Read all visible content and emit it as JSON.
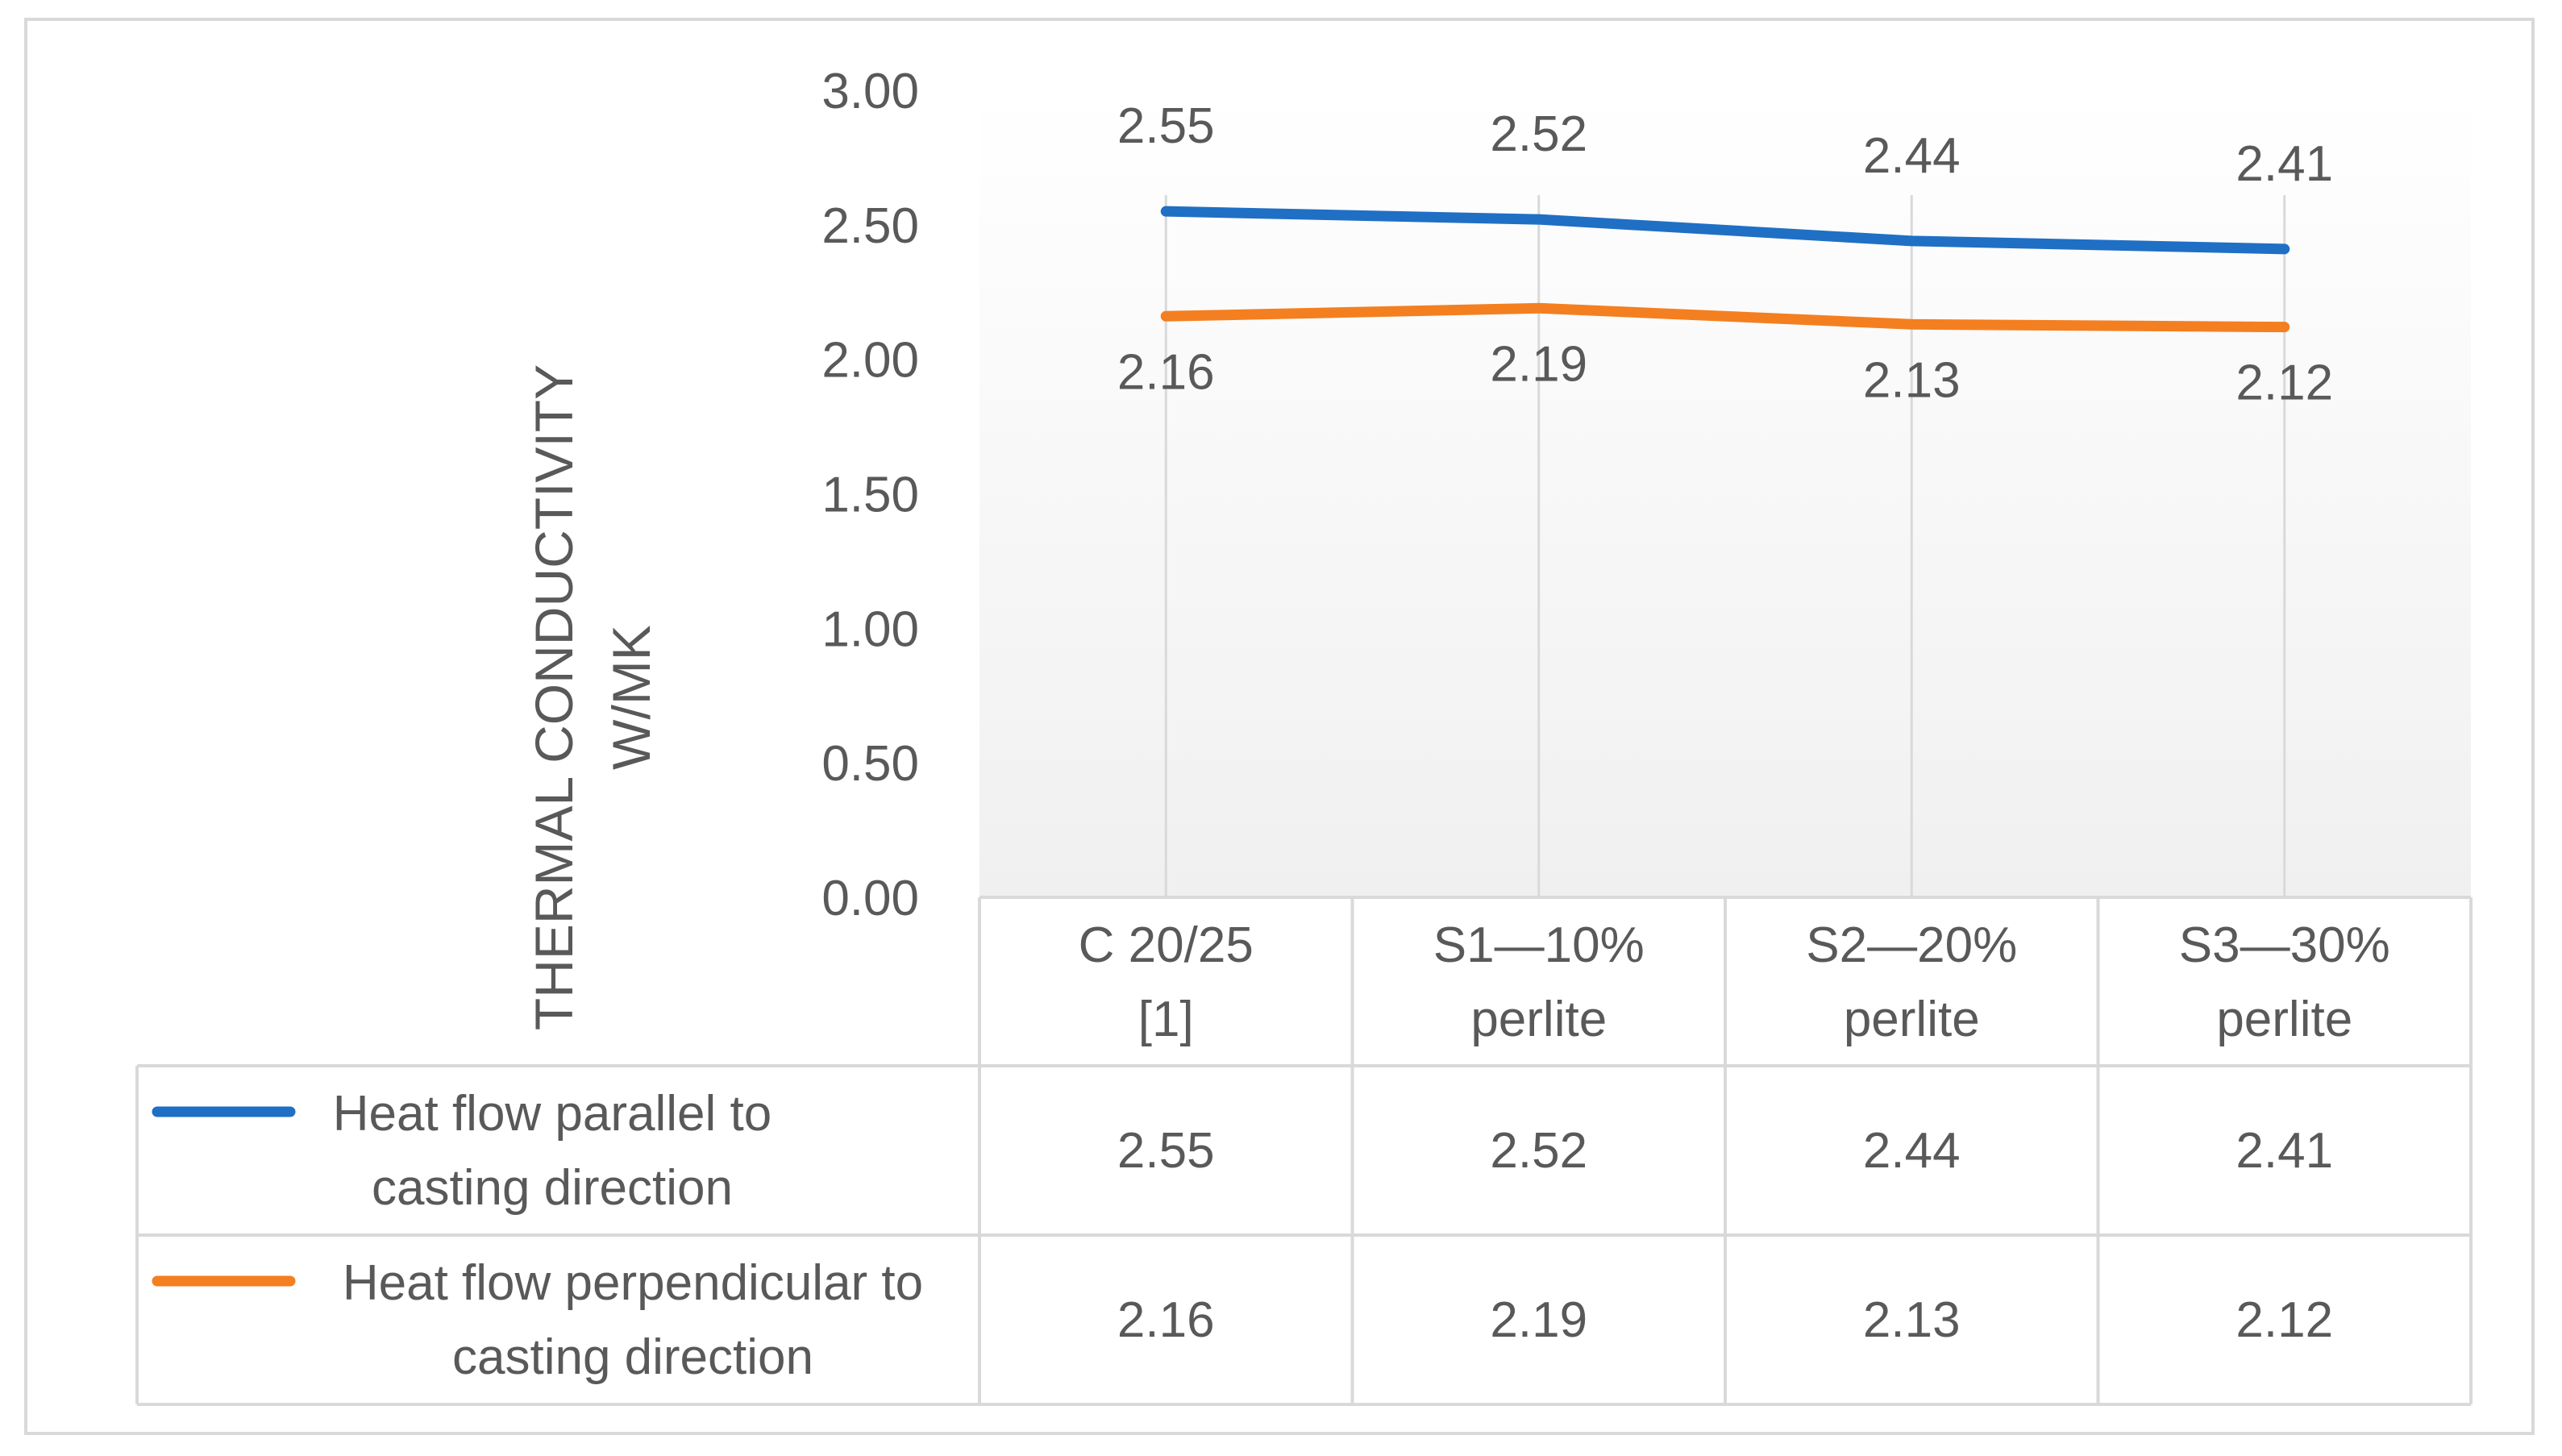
{
  "chart_data": {
    "type": "line",
    "title": "",
    "ylabel_lines": [
      "THERMAL CONDUCTIVITY",
      "W/MK"
    ],
    "xlabel": "",
    "ylim": [
      0,
      3
    ],
    "yticks": [
      "0.00",
      "0.50",
      "1.00",
      "1.50",
      "2.00",
      "2.50",
      "3.00"
    ],
    "grid": "vertical",
    "legend": "data-table",
    "categories": [
      [
        "C 20/25",
        "[1]"
      ],
      [
        "S1—10%",
        "perlite"
      ],
      [
        "S2—20%",
        "perlite"
      ],
      [
        "S3—30%",
        "perlite"
      ]
    ],
    "series": [
      {
        "name_lines": [
          "Heat flow parallel to",
          "casting direction"
        ],
        "values": [
          2.55,
          2.52,
          2.44,
          2.41
        ],
        "labels": [
          "2.55",
          "2.52",
          "2.44",
          "2.41"
        ],
        "color": "#1f6fc5",
        "label_position": "above"
      },
      {
        "name_lines": [
          "Heat flow perpendicular to",
          "casting direction"
        ],
        "values": [
          2.16,
          2.19,
          2.13,
          2.12
        ],
        "labels": [
          "2.16",
          "2.19",
          "2.13",
          "2.12"
        ],
        "color": "#f47f20",
        "label_position": "below"
      }
    ]
  }
}
